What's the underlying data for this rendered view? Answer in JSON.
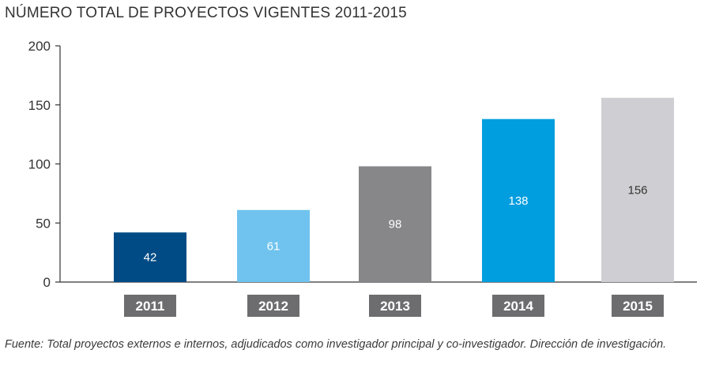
{
  "title": "NÚMERO TOTAL DE PROYECTOS VIGENTES 2011-2015",
  "footnote": "Fuente: Total proyectos externos e internos, adjudicados como investigador principal y co-investigador. Dirección de investigación.",
  "chart_data": {
    "type": "bar",
    "categories": [
      "2011",
      "2012",
      "2013",
      "2014",
      "2015"
    ],
    "values": [
      42,
      61,
      98,
      138,
      156
    ],
    "bar_colors": [
      "#004b85",
      "#6fc3ee",
      "#878689",
      "#009ddf",
      "#cfcfd3"
    ],
    "label_colors": [
      "#ffffff",
      "#ffffff",
      "#ffffff",
      "#ffffff",
      "#333333"
    ],
    "category_box_color": "#6d6d6f",
    "yticks": [
      0,
      50,
      100,
      150,
      200
    ],
    "ylim": [
      0,
      200
    ],
    "grid": false,
    "legend": "none"
  }
}
